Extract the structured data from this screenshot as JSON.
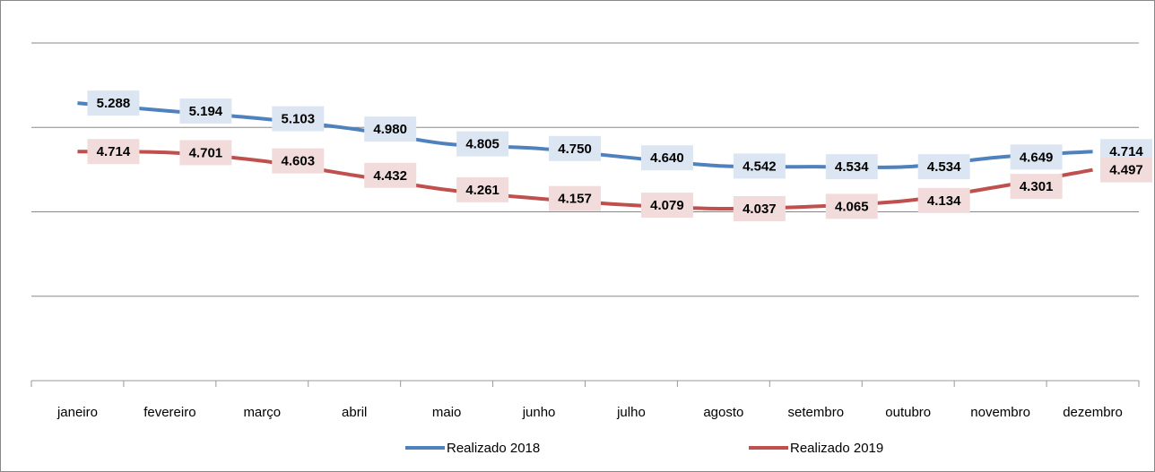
{
  "chart_data": {
    "type": "line",
    "categories": [
      "janeiro",
      "fevereiro",
      "março",
      "abril",
      "maio",
      "junho",
      "julho",
      "agosto",
      "setembro",
      "outubro",
      "novembro",
      "dezembro"
    ],
    "series": [
      {
        "name": "Realizado 2018",
        "color": "#4f81bd",
        "label_bg": "#dce6f2",
        "values": [
          5.288,
          5.194,
          5.103,
          4.98,
          4.805,
          4.75,
          4.64,
          4.542,
          4.534,
          4.534,
          4.649,
          4.714
        ],
        "value_labels": [
          "5.288",
          "5.194",
          "5.103",
          "4.980",
          "4.805",
          "4.750",
          "4.640",
          "4.542",
          "4.534",
          "4.534",
          "4.649",
          "4.714"
        ]
      },
      {
        "name": "Realizado 2019",
        "color": "#c0504d",
        "label_bg": "#f2dcdb",
        "values": [
          4.714,
          4.701,
          4.603,
          4.432,
          4.261,
          4.157,
          4.079,
          4.037,
          4.065,
          4.134,
          4.301,
          4.497
        ],
        "value_labels": [
          "4.714",
          "4.701",
          "4.603",
          "4.432",
          "4.261",
          "4.157",
          "4.079",
          "4.037",
          "4.065",
          "4.134",
          "4.301",
          "4.497"
        ]
      }
    ],
    "ylim": [
      2,
      6
    ],
    "yticks": [
      2,
      3,
      4,
      5,
      6
    ],
    "grid": true
  }
}
